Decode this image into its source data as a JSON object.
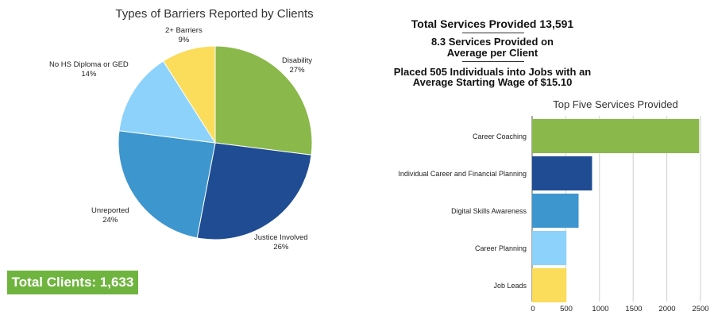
{
  "chart_data": [
    {
      "type": "pie",
      "title": "Types of Barriers Reported by Clients",
      "slices": [
        {
          "label": "Disability",
          "pct": 27,
          "color": "#8ab84a"
        },
        {
          "label": "Justice Involved",
          "pct": 26,
          "color": "#1f4c92"
        },
        {
          "label": "Unreported",
          "pct": 24,
          "color": "#3d96ce"
        },
        {
          "label": "No HS Diploma or GED",
          "pct": 14,
          "color": "#8dd2fa"
        },
        {
          "label": "2+ Barriers",
          "pct": 9,
          "color": "#fbdc5b"
        }
      ]
    },
    {
      "type": "bar",
      "orientation": "horizontal",
      "title": "Top Five Services Provided",
      "categories": [
        "Career Coaching",
        "Individual Career and Financial Planning",
        "Digital Skills Awareness",
        "Career Planning",
        "Job Leads"
      ],
      "values": [
        2480,
        890,
        690,
        510,
        510
      ],
      "colors": [
        "#8ab84a",
        "#1f4c92",
        "#3d96ce",
        "#8dd2fa",
        "#fbdc5b"
      ],
      "xlim": [
        0,
        2500
      ],
      "xticks": [
        0,
        500,
        1000,
        1500,
        2000,
        2500
      ],
      "grid": true
    }
  ],
  "summary": {
    "total_clients": "Total Clients: 1,633",
    "total_services": "Total Services Provided 13,591",
    "avg_line1": "8.3 Services Provided on",
    "avg_line2": "Average per Client",
    "placed_line1": "Placed 505 Individuals into Jobs with an",
    "placed_line2": "Average Starting Wage of $15.10"
  }
}
